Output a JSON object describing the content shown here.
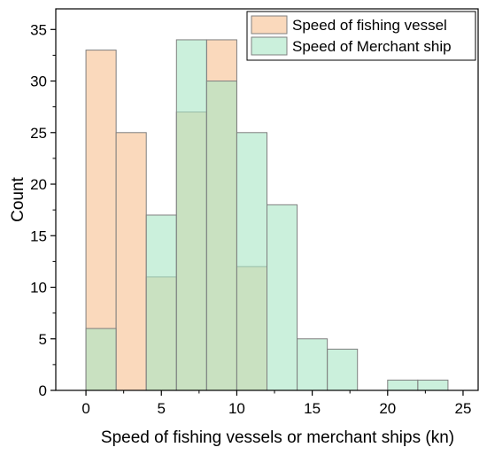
{
  "chart_data": {
    "type": "bar",
    "subtype": "overlapping-histogram",
    "xlabel": "Speed of fishing vessels or merchant ships (kn)",
    "ylabel": "Count",
    "xlim": [
      -2,
      26
    ],
    "ylim": [
      0,
      37
    ],
    "xticks": [
      0,
      5,
      10,
      15,
      20,
      25
    ],
    "yticks": [
      0,
      5,
      10,
      15,
      20,
      25,
      30,
      35
    ],
    "bin_width": 2,
    "grid": false,
    "legend_position": "top-right",
    "series": [
      {
        "name": "Speed of fishing vessel",
        "color": "#fad9bc",
        "bins": [
          {
            "start": 0,
            "end": 2,
            "count": 33
          },
          {
            "start": 2,
            "end": 4,
            "count": 25
          },
          {
            "start": 4,
            "end": 6,
            "count": 11
          },
          {
            "start": 6,
            "end": 8,
            "count": 27
          },
          {
            "start": 8,
            "end": 10,
            "count": 34
          },
          {
            "start": 10,
            "end": 12,
            "count": 12
          }
        ]
      },
      {
        "name": "Speed of Merchant ship",
        "color": "#a8e6c4",
        "bins": [
          {
            "start": 0,
            "end": 2,
            "count": 6
          },
          {
            "start": 4,
            "end": 6,
            "count": 17
          },
          {
            "start": 6,
            "end": 8,
            "count": 34
          },
          {
            "start": 8,
            "end": 10,
            "count": 30
          },
          {
            "start": 10,
            "end": 12,
            "count": 25
          },
          {
            "start": 12,
            "end": 14,
            "count": 18
          },
          {
            "start": 14,
            "end": 16,
            "count": 5
          },
          {
            "start": 16,
            "end": 18,
            "count": 4
          },
          {
            "start": 20,
            "end": 22,
            "count": 1
          },
          {
            "start": 22,
            "end": 24,
            "count": 1
          }
        ]
      }
    ]
  }
}
